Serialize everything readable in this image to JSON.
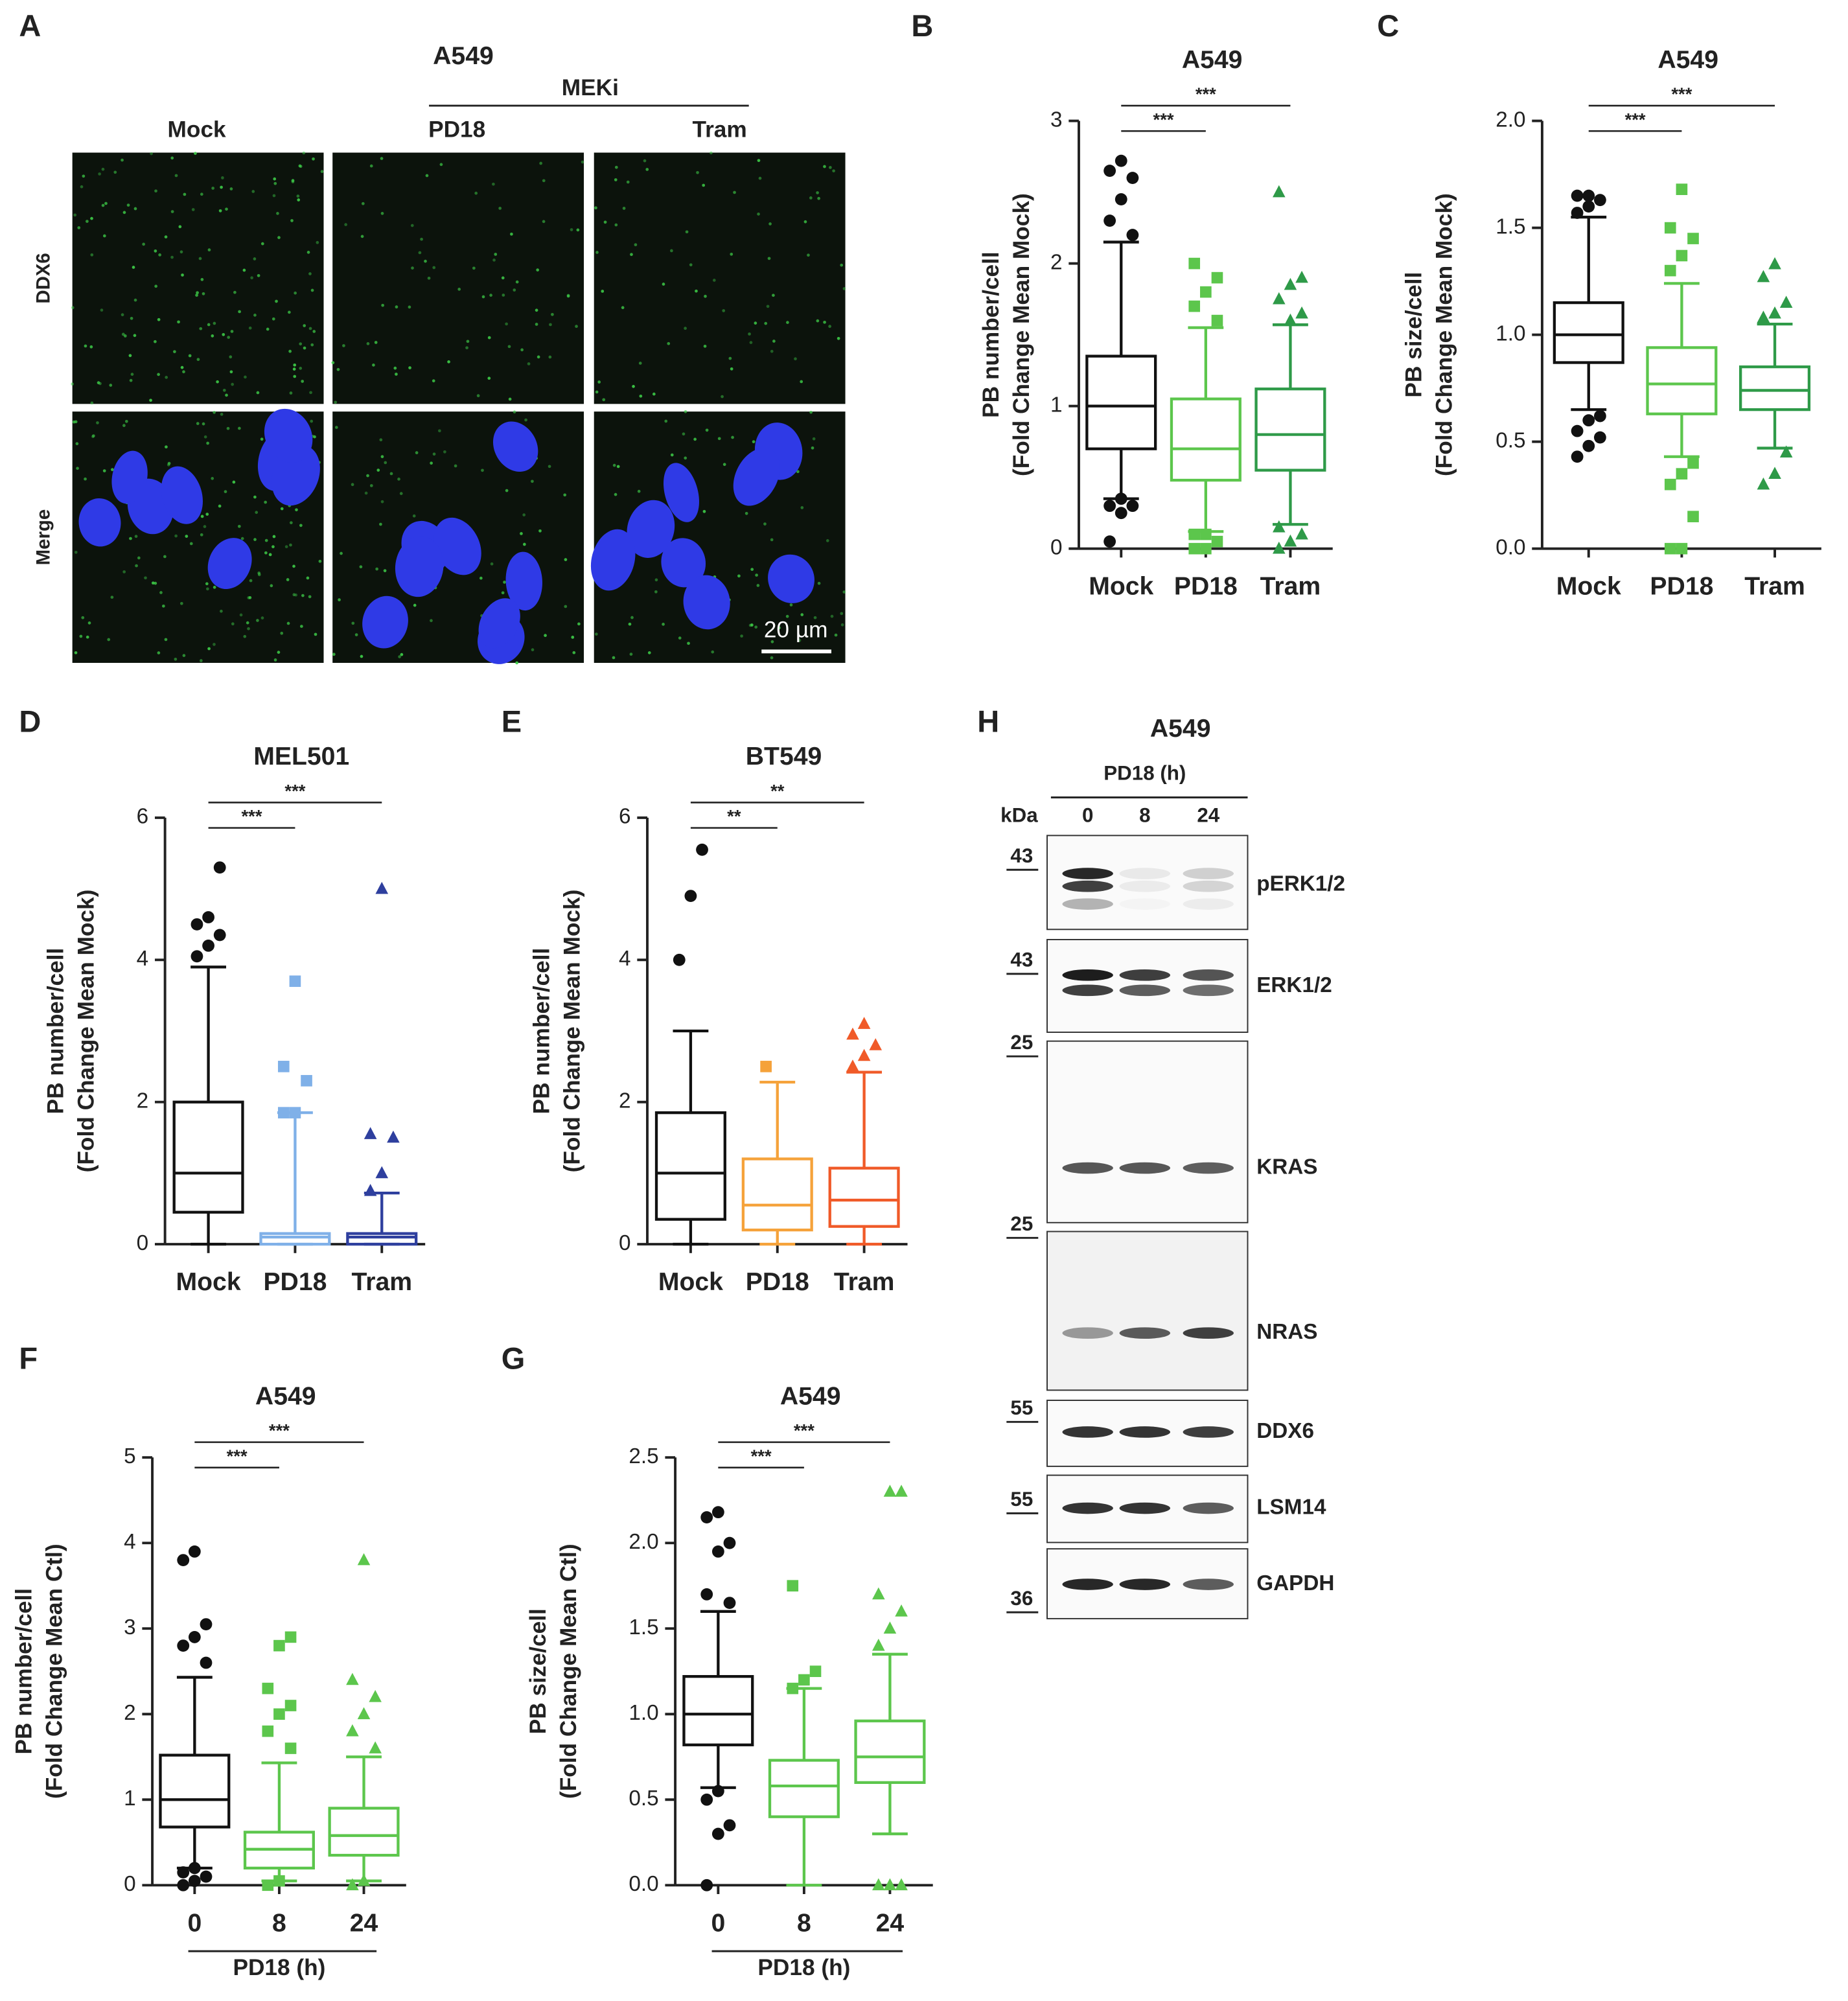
{
  "chart_data": [
    {
      "type": "box",
      "panel": "B",
      "title": "A549",
      "ylabel": [
        "PB number/cell",
        "(Fold Change Mean Mock)"
      ],
      "categories": [
        "Mock",
        "PD18",
        "Tram"
      ],
      "ylim": [
        0,
        3
      ],
      "yticks": [
        0,
        1,
        2,
        3
      ],
      "boxes": [
        {
          "color": "#111111",
          "marker": "circle",
          "whisker_low": 0.35,
          "q1": 0.7,
          "median": 1.0,
          "q3": 1.35,
          "whisker_high": 2.15,
          "outliers": [
            0.05,
            0.25,
            0.3,
            0.3,
            0.35,
            2.2,
            2.3,
            2.45,
            2.6,
            2.65,
            2.72
          ]
        },
        {
          "color": "#5cc64c",
          "marker": "square",
          "whisker_low": 0.12,
          "q1": 0.48,
          "median": 0.7,
          "q3": 1.05,
          "whisker_high": 1.55,
          "outliers": [
            0,
            0,
            0.05,
            0.1,
            0.1,
            1.6,
            1.7,
            1.8,
            1.9,
            2.0
          ]
        },
        {
          "color": "#2e9a48",
          "marker": "triangle",
          "whisker_low": 0.17,
          "q1": 0.55,
          "median": 0.8,
          "q3": 1.12,
          "whisker_high": 1.57,
          "outliers": [
            0,
            0.05,
            0.1,
            0.15,
            1.6,
            1.65,
            1.75,
            1.85,
            1.9,
            2.5
          ]
        }
      ],
      "significance": [
        {
          "pair": [
            "Mock",
            "PD18"
          ],
          "label": "***"
        },
        {
          "pair": [
            "Mock",
            "Tram"
          ],
          "label": "***"
        }
      ]
    },
    {
      "type": "box",
      "panel": "C",
      "title": "A549",
      "ylabel": [
        "PB size/cell",
        "(Fold Change Mean Mock)"
      ],
      "categories": [
        "Mock",
        "PD18",
        "Tram"
      ],
      "ylim": [
        0,
        2
      ],
      "yticks": [
        {
          "value": 0,
          "label": "0.0"
        },
        0.5,
        {
          "value": 1,
          "label": "1.0"
        },
        1.5,
        {
          "value": 2,
          "label": "2.0"
        }
      ],
      "boxes": [
        {
          "color": "#111111",
          "marker": "circle",
          "whisker_low": 0.65,
          "q1": 0.87,
          "median": 1.0,
          "q3": 1.15,
          "whisker_high": 1.55,
          "outliers": [
            0.43,
            0.48,
            0.52,
            0.55,
            0.6,
            0.62,
            1.57,
            1.6,
            1.63,
            1.65,
            1.65
          ]
        },
        {
          "color": "#5cc64c",
          "marker": "square",
          "whisker_low": 0.43,
          "q1": 0.63,
          "median": 0.77,
          "q3": 0.94,
          "whisker_high": 1.24,
          "outliers": [
            0,
            0,
            0.15,
            0.3,
            0.35,
            0.4,
            1.3,
            1.37,
            1.45,
            1.5,
            1.68
          ]
        },
        {
          "color": "#2e9a48",
          "marker": "triangle",
          "whisker_low": 0.47,
          "q1": 0.65,
          "median": 0.74,
          "q3": 0.85,
          "whisker_high": 1.05,
          "outliers": [
            0.3,
            0.35,
            0.45,
            1.08,
            1.1,
            1.15,
            1.27,
            1.33
          ]
        }
      ],
      "significance": [
        {
          "pair": [
            "Mock",
            "PD18"
          ],
          "label": "***"
        },
        {
          "pair": [
            "Mock",
            "Tram"
          ],
          "label": "***"
        }
      ]
    },
    {
      "type": "box",
      "panel": "D",
      "title": "MEL501",
      "ylabel": [
        "PB number/cell",
        "(Fold Change Mean Mock)"
      ],
      "categories": [
        "Mock",
        "PD18",
        "Tram"
      ],
      "ylim": [
        0,
        6
      ],
      "yticks": [
        0,
        2,
        4,
        6
      ],
      "boxes": [
        {
          "color": "#111111",
          "marker": "circle",
          "whisker_low": 0,
          "q1": 0.45,
          "median": 1.0,
          "q3": 2.0,
          "whisker_high": 3.9,
          "outliers": [
            4.05,
            4.2,
            4.35,
            4.5,
            4.6,
            5.3
          ]
        },
        {
          "color": "#7fb0e8",
          "marker": "square",
          "whisker_low": 0,
          "q1": 0,
          "median": 0.1,
          "q3": 0.15,
          "whisker_high": 1.85,
          "outliers": [
            1.85,
            1.85,
            2.3,
            2.5,
            3.7
          ]
        },
        {
          "color": "#2e3f9e",
          "marker": "triangle",
          "whisker_low": 0,
          "q1": 0,
          "median": 0.1,
          "q3": 0.15,
          "whisker_high": 0.72,
          "outliers": [
            0.75,
            1.0,
            1.5,
            1.55,
            5.0
          ]
        }
      ],
      "significance": [
        {
          "pair": [
            "Mock",
            "PD18"
          ],
          "label": "***"
        },
        {
          "pair": [
            "Mock",
            "Tram"
          ],
          "label": "***"
        }
      ]
    },
    {
      "type": "box",
      "panel": "E",
      "title": "BT549",
      "ylabel": [
        "PB number/cell",
        "(Fold Change Mean Mock)"
      ],
      "categories": [
        "Mock",
        "PD18",
        "Tram"
      ],
      "ylim": [
        0,
        6
      ],
      "yticks": [
        0,
        2,
        4,
        6
      ],
      "boxes": [
        {
          "color": "#111111",
          "marker": "circle",
          "whisker_low": 0,
          "q1": 0.35,
          "median": 1.0,
          "q3": 1.85,
          "whisker_high": 3.0,
          "outliers": [
            4.0,
            4.9,
            5.55
          ]
        },
        {
          "color": "#f5a23a",
          "marker": "square",
          "whisker_low": 0,
          "q1": 0.2,
          "median": 0.55,
          "q3": 1.2,
          "whisker_high": 2.28,
          "outliers": [
            2.5
          ]
        },
        {
          "color": "#f05a28",
          "marker": "triangle",
          "whisker_low": 0,
          "q1": 0.25,
          "median": 0.62,
          "q3": 1.07,
          "whisker_high": 2.42,
          "outliers": [
            2.5,
            2.65,
            2.8,
            2.95,
            3.1
          ]
        }
      ],
      "significance": [
        {
          "pair": [
            "Mock",
            "PD18"
          ],
          "label": "**"
        },
        {
          "pair": [
            "Mock",
            "Tram"
          ],
          "label": "**"
        }
      ]
    },
    {
      "type": "box",
      "panel": "F",
      "title": "A549",
      "ylabel": [
        "PB number/cell",
        "(Fold Change Mean Ctl)"
      ],
      "categories": [
        "0",
        "8",
        "24"
      ],
      "xlabel": "PD18 (h)",
      "ylim": [
        0,
        5
      ],
      "yticks": [
        0,
        1,
        2,
        3,
        4,
        5
      ],
      "boxes": [
        {
          "color": "#111111",
          "marker": "circle",
          "whisker_low": 0.2,
          "q1": 0.68,
          "median": 1.0,
          "q3": 1.52,
          "whisker_high": 2.43,
          "outliers": [
            0,
            0.05,
            0.1,
            0.15,
            0.2,
            2.6,
            2.8,
            2.9,
            3.05,
            3.8,
            3.9
          ]
        },
        {
          "color": "#5cc64c",
          "marker": "square",
          "whisker_low": 0.05,
          "q1": 0.2,
          "median": 0.42,
          "q3": 0.62,
          "whisker_high": 1.43,
          "outliers": [
            0,
            0.05,
            1.6,
            1.8,
            2.0,
            2.1,
            2.3,
            2.8,
            2.9
          ]
        },
        {
          "color": "#5cc64c",
          "marker": "triangle",
          "whisker_low": 0.05,
          "q1": 0.35,
          "median": 0.58,
          "q3": 0.9,
          "whisker_high": 1.5,
          "outliers": [
            0,
            0.05,
            1.6,
            1.8,
            2.0,
            2.2,
            2.4,
            3.8
          ]
        }
      ],
      "significance": [
        {
          "pair": [
            "0",
            "8"
          ],
          "label": "***"
        },
        {
          "pair": [
            "0",
            "24"
          ],
          "label": "***"
        }
      ]
    },
    {
      "type": "box",
      "panel": "G",
      "title": "A549",
      "ylabel": [
        "PB size/cell",
        "(Fold Change Mean Ctl)"
      ],
      "categories": [
        "0",
        "8",
        "24"
      ],
      "xlabel": "PD18 (h)",
      "ylim": [
        0,
        2.5
      ],
      "yticks": [
        {
          "value": 0,
          "label": "0.0"
        },
        0.5,
        {
          "value": 1,
          "label": "1.0"
        },
        1.5,
        {
          "value": 2,
          "label": "2.0"
        },
        2.5
      ],
      "boxes": [
        {
          "color": "#111111",
          "marker": "circle",
          "whisker_low": 0.57,
          "q1": 0.82,
          "median": 1.0,
          "q3": 1.22,
          "whisker_high": 1.6,
          "outliers": [
            0,
            0.3,
            0.35,
            0.5,
            0.55,
            1.65,
            1.7,
            1.95,
            2.0,
            2.15,
            2.18
          ]
        },
        {
          "color": "#5cc64c",
          "marker": "square",
          "whisker_low": 0,
          "q1": 0.4,
          "median": 0.58,
          "q3": 0.73,
          "whisker_high": 1.15,
          "outliers": [
            1.15,
            1.2,
            1.25,
            1.75
          ]
        },
        {
          "color": "#5cc64c",
          "marker": "triangle",
          "whisker_low": 0.3,
          "q1": 0.6,
          "median": 0.75,
          "q3": 0.96,
          "whisker_high": 1.35,
          "outliers": [
            0,
            0,
            0,
            1.4,
            1.5,
            1.6,
            1.7,
            2.3,
            2.3
          ]
        }
      ],
      "significance": [
        {
          "pair": [
            "0",
            "8"
          ],
          "label": "***"
        },
        {
          "pair": [
            "0",
            "24"
          ],
          "label": "***"
        }
      ]
    }
  ],
  "microscopy": {
    "panel": "A",
    "title": "A549",
    "group": "MEKi",
    "columns": [
      "Mock",
      "PD18",
      "Tram"
    ],
    "rows": [
      "DDX6",
      "Merge"
    ],
    "scale_bar": "20 µm"
  },
  "western_blot": {
    "panel": "H",
    "title": "A549",
    "treatment": "PD18 (h)",
    "size_unit": "kDa",
    "lanes": [
      "0",
      "8",
      "24"
    ],
    "blots": [
      {
        "name": "pERK1/2",
        "marker": "43"
      },
      {
        "name": "ERK1/2",
        "marker": "43"
      },
      {
        "name": "KRAS",
        "marker": "25"
      },
      {
        "name": "NRAS",
        "marker": "25"
      },
      {
        "name": "DDX6",
        "marker": "55"
      },
      {
        "name": "LSM14",
        "marker": "55"
      },
      {
        "name": "GAPDH",
        "marker": "36"
      }
    ]
  }
}
